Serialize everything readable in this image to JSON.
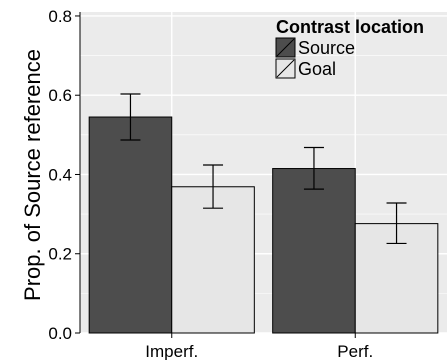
{
  "chart_data": {
    "type": "bar",
    "categories": [
      "Imperf.",
      "Perf."
    ],
    "series": [
      {
        "name": "Source",
        "values": [
          0.545,
          0.415
        ],
        "error_low": [
          0.487,
          0.363
        ],
        "error_high": [
          0.603,
          0.468
        ],
        "color": "#4d4d4d"
      },
      {
        "name": "Goal",
        "values": [
          0.369,
          0.276
        ],
        "error_low": [
          0.315,
          0.226
        ],
        "error_high": [
          0.424,
          0.328
        ],
        "color": "#e6e6e6"
      }
    ],
    "ylabel": "Prop. of Source reference",
    "xlabel": "",
    "ylim": [
      0,
      0.81
    ],
    "yticks": [
      "0.0",
      "0.2",
      "0.4",
      "0.6",
      "0.8"
    ],
    "legend_title": "Contrast location",
    "legend_position": "top-right",
    "grid": true,
    "panel_background": "#ebebeb",
    "gridline_color": "#ffffff"
  }
}
